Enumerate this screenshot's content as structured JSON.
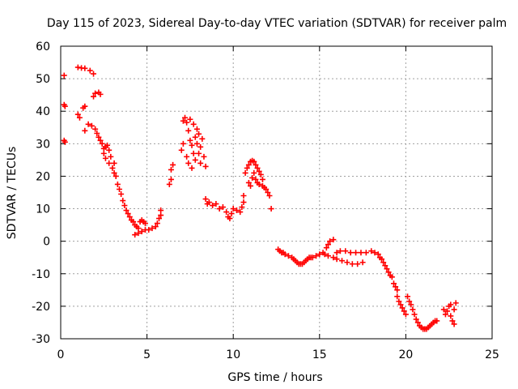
{
  "chart_data": {
    "type": "scatter",
    "title": "Day 115 of 2023, Sidereal Day-to-day VTEC variation (SDTVAR) for receiver palm",
    "xlabel": "GPS time / hours",
    "ylabel": "SDTVAR / TECUs",
    "xlim": [
      0,
      25
    ],
    "ylim": [
      -30,
      60
    ],
    "xticks": [
      0,
      5,
      10,
      15,
      20,
      25
    ],
    "yticks": [
      -30,
      -20,
      -10,
      0,
      10,
      20,
      30,
      40,
      50,
      60
    ],
    "grid": true,
    "marker": "+",
    "color": "#ff0000",
    "series": [
      {
        "name": "SDTVAR",
        "points": [
          [
            0.2,
            51
          ],
          [
            0.2,
            42
          ],
          [
            0.25,
            41.5
          ],
          [
            0.2,
            31
          ],
          [
            0.25,
            30.5
          ],
          [
            1.0,
            53.5
          ],
          [
            1.2,
            53.3
          ],
          [
            1.4,
            53.2
          ],
          [
            1.7,
            52.5
          ],
          [
            1.9,
            51.5
          ],
          [
            1.0,
            39
          ],
          [
            1.1,
            38
          ],
          [
            1.3,
            41
          ],
          [
            1.4,
            41.5
          ],
          [
            1.9,
            44.5
          ],
          [
            2.0,
            45.5
          ],
          [
            2.2,
            45.8
          ],
          [
            2.3,
            45.2
          ],
          [
            1.4,
            34
          ],
          [
            1.6,
            36
          ],
          [
            1.8,
            35.5
          ],
          [
            2.0,
            34.5
          ],
          [
            2.1,
            33.2
          ],
          [
            2.2,
            32
          ],
          [
            2.3,
            31
          ],
          [
            2.4,
            30
          ],
          [
            2.5,
            28.5
          ],
          [
            2.5,
            27
          ],
          [
            2.6,
            25.5
          ],
          [
            2.6,
            29
          ],
          [
            2.7,
            29.5
          ],
          [
            2.8,
            28
          ],
          [
            2.8,
            24
          ],
          [
            2.9,
            26
          ],
          [
            3.0,
            22.5
          ],
          [
            3.1,
            24
          ],
          [
            3.1,
            21
          ],
          [
            3.2,
            20
          ],
          [
            3.3,
            17.5
          ],
          [
            3.4,
            16
          ],
          [
            3.5,
            14.5
          ],
          [
            3.6,
            12.5
          ],
          [
            3.7,
            11
          ],
          [
            3.8,
            9.5
          ],
          [
            3.9,
            8.5
          ],
          [
            4.0,
            7.5
          ],
          [
            4.1,
            6.5
          ],
          [
            4.2,
            6
          ],
          [
            4.3,
            5
          ],
          [
            4.4,
            4.5
          ],
          [
            4.5,
            4
          ],
          [
            4.6,
            6
          ],
          [
            4.7,
            6.5
          ],
          [
            4.8,
            6
          ],
          [
            4.9,
            5.5
          ],
          [
            4.3,
            2
          ],
          [
            4.5,
            2.5
          ],
          [
            4.7,
            3
          ],
          [
            4.9,
            3.5
          ],
          [
            5.1,
            3.5
          ],
          [
            5.3,
            4
          ],
          [
            5.5,
            4.5
          ],
          [
            5.6,
            5.5
          ],
          [
            5.7,
            7
          ],
          [
            5.8,
            8
          ],
          [
            5.8,
            9.5
          ],
          [
            6.3,
            17.5
          ],
          [
            6.4,
            19
          ],
          [
            6.4,
            22
          ],
          [
            6.5,
            23.5
          ],
          [
            7.0,
            28
          ],
          [
            7.1,
            30
          ],
          [
            7.1,
            37
          ],
          [
            7.2,
            38
          ],
          [
            7.3,
            36.5
          ],
          [
            7.3,
            26
          ],
          [
            7.4,
            34
          ],
          [
            7.4,
            24
          ],
          [
            7.5,
            31
          ],
          [
            7.5,
            37.5
          ],
          [
            7.6,
            29.5
          ],
          [
            7.6,
            22.5
          ],
          [
            7.7,
            36
          ],
          [
            7.7,
            27
          ],
          [
            7.8,
            32
          ],
          [
            7.8,
            25
          ],
          [
            7.9,
            34.5
          ],
          [
            7.9,
            30
          ],
          [
            8.0,
            27
          ],
          [
            8.0,
            33
          ],
          [
            8.1,
            29
          ],
          [
            8.1,
            24
          ],
          [
            8.2,
            31.5
          ],
          [
            8.3,
            26
          ],
          [
            8.4,
            23
          ],
          [
            8.4,
            13
          ],
          [
            8.5,
            11.5
          ],
          [
            8.6,
            12
          ],
          [
            8.8,
            11
          ],
          [
            9.0,
            11.5
          ],
          [
            9.2,
            10
          ],
          [
            9.4,
            10.5
          ],
          [
            9.6,
            9
          ],
          [
            9.7,
            7.5
          ],
          [
            9.8,
            7
          ],
          [
            9.9,
            8.5
          ],
          [
            10.0,
            10
          ],
          [
            10.2,
            9.5
          ],
          [
            10.4,
            9
          ],
          [
            10.5,
            10.5
          ],
          [
            10.6,
            12
          ],
          [
            10.6,
            14
          ],
          [
            10.7,
            21
          ],
          [
            10.8,
            22.5
          ],
          [
            10.9,
            23.5
          ],
          [
            11.0,
            24.5
          ],
          [
            11.1,
            24.8
          ],
          [
            11.2,
            24.5
          ],
          [
            11.3,
            23.5
          ],
          [
            11.4,
            22.5
          ],
          [
            11.5,
            21.5
          ],
          [
            11.6,
            20.5
          ],
          [
            11.7,
            19
          ],
          [
            10.9,
            18
          ],
          [
            11.0,
            17
          ],
          [
            11.1,
            19.5
          ],
          [
            11.2,
            21
          ],
          [
            11.3,
            19
          ],
          [
            11.4,
            18
          ],
          [
            11.5,
            17.5
          ],
          [
            11.7,
            17
          ],
          [
            11.8,
            16.5
          ],
          [
            11.9,
            16
          ],
          [
            12.0,
            15
          ],
          [
            12.1,
            14
          ],
          [
            12.2,
            10
          ],
          [
            12.6,
            -2.5
          ],
          [
            12.7,
            -3
          ],
          [
            12.8,
            -3.5
          ],
          [
            12.9,
            -3.5
          ],
          [
            13.0,
            -4
          ],
          [
            13.2,
            -4.5
          ],
          [
            13.4,
            -5
          ],
          [
            13.5,
            -5.5
          ],
          [
            13.6,
            -6
          ],
          [
            13.7,
            -6.5
          ],
          [
            13.8,
            -7
          ],
          [
            13.9,
            -7
          ],
          [
            14.0,
            -7
          ],
          [
            14.1,
            -6.5
          ],
          [
            14.2,
            -6
          ],
          [
            14.3,
            -5.5
          ],
          [
            14.4,
            -5
          ],
          [
            14.5,
            -5
          ],
          [
            14.6,
            -5
          ],
          [
            14.8,
            -4.5
          ],
          [
            15.0,
            -4
          ],
          [
            15.2,
            -3.5
          ],
          [
            15.4,
            -2
          ],
          [
            15.5,
            -1
          ],
          [
            15.6,
            0
          ],
          [
            15.8,
            0.5
          ],
          [
            15.3,
            -4
          ],
          [
            15.5,
            -4.5
          ],
          [
            15.8,
            -5
          ],
          [
            16.0,
            -5.5
          ],
          [
            16.3,
            -6
          ],
          [
            16.6,
            -6.5
          ],
          [
            16.9,
            -7
          ],
          [
            17.2,
            -7
          ],
          [
            17.5,
            -6.5
          ],
          [
            16.0,
            -3.5
          ],
          [
            16.2,
            -3
          ],
          [
            16.5,
            -3
          ],
          [
            16.8,
            -3.5
          ],
          [
            17.1,
            -3.5
          ],
          [
            17.4,
            -3.5
          ],
          [
            17.7,
            -3.5
          ],
          [
            18.0,
            -3
          ],
          [
            18.2,
            -3.5
          ],
          [
            18.4,
            -4
          ],
          [
            18.5,
            -5
          ],
          [
            18.6,
            -5.5
          ],
          [
            18.7,
            -6.5
          ],
          [
            18.8,
            -7.5
          ],
          [
            18.9,
            -8.5
          ],
          [
            19.0,
            -9.5
          ],
          [
            19.1,
            -10.5
          ],
          [
            19.2,
            -11
          ],
          [
            19.3,
            -13
          ],
          [
            19.4,
            -14
          ],
          [
            19.5,
            -15
          ],
          [
            19.5,
            -17
          ],
          [
            19.6,
            -18.5
          ],
          [
            19.7,
            -19.5
          ],
          [
            19.8,
            -20.5
          ],
          [
            19.9,
            -21.5
          ],
          [
            20.0,
            -22.5
          ],
          [
            20.1,
            -17
          ],
          [
            20.2,
            -18.5
          ],
          [
            20.3,
            -19.5
          ],
          [
            20.4,
            -21
          ],
          [
            20.5,
            -22.5
          ],
          [
            20.6,
            -24
          ],
          [
            20.7,
            -25
          ],
          [
            20.8,
            -26
          ],
          [
            20.9,
            -26.5
          ],
          [
            21.0,
            -27
          ],
          [
            21.1,
            -27
          ],
          [
            21.2,
            -27
          ],
          [
            21.3,
            -26.5
          ],
          [
            21.4,
            -26
          ],
          [
            21.5,
            -25.5
          ],
          [
            21.6,
            -25
          ],
          [
            21.7,
            -24.5
          ],
          [
            21.8,
            -24.5
          ],
          [
            22.2,
            -21
          ],
          [
            22.3,
            -22.5
          ],
          [
            22.4,
            -21.5
          ],
          [
            22.5,
            -20
          ],
          [
            22.6,
            -19.5
          ],
          [
            22.6,
            -23
          ],
          [
            22.7,
            -24.5
          ],
          [
            22.8,
            -25.5
          ],
          [
            22.8,
            -21
          ],
          [
            22.9,
            -19
          ]
        ]
      }
    ]
  }
}
